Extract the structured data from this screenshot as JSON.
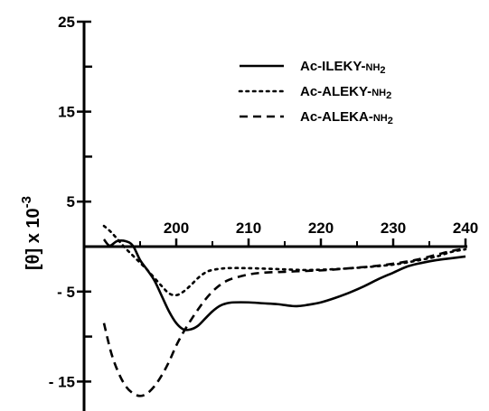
{
  "chart_data": {
    "type": "line",
    "title": "",
    "xlabel": "",
    "ylabel": "[θ] x 10",
    "ylabel_exponent": "-3",
    "xlim": [
      188,
      240
    ],
    "ylim": [
      -17.5,
      25
    ],
    "x_ticks": [
      200,
      210,
      220,
      230,
      240
    ],
    "y_ticks_labeled": [
      {
        "value": 25,
        "label": "25"
      },
      {
        "value": 15,
        "label": "15"
      },
      {
        "value": 5,
        "label": "5"
      },
      {
        "value": -5,
        "label": "- 5"
      },
      {
        "value": -15,
        "label": "- 15"
      }
    ],
    "y_ticks_minor": [
      20,
      10,
      -10
    ],
    "legend_position": "top-right",
    "series": [
      {
        "name": "Ac-ILEKY-NH2",
        "name_main": "Ac-ILEKY-",
        "name_sub": "NH",
        "name_subscript": "2",
        "style": "solid",
        "color": "#000000",
        "points": [
          [
            190,
            0.8
          ],
          [
            190.8,
            0.1
          ],
          [
            191.8,
            0.6
          ],
          [
            193,
            0.6
          ],
          [
            194,
            0.1
          ],
          [
            195,
            -1.5
          ],
          [
            196,
            -2.6
          ],
          [
            197,
            -3.8
          ],
          [
            198,
            -5.5
          ],
          [
            199,
            -7.2
          ],
          [
            200,
            -8.5
          ],
          [
            201,
            -9.2
          ],
          [
            202,
            -9.2
          ],
          [
            203,
            -8.8
          ],
          [
            204,
            -8.0
          ],
          [
            205,
            -7.2
          ],
          [
            206,
            -6.6
          ],
          [
            207,
            -6.3
          ],
          [
            208,
            -6.2
          ],
          [
            210,
            -6.2
          ],
          [
            212,
            -6.3
          ],
          [
            214,
            -6.4
          ],
          [
            216,
            -6.6
          ],
          [
            217,
            -6.6
          ],
          [
            218,
            -6.5
          ],
          [
            220,
            -6.2
          ],
          [
            222,
            -5.7
          ],
          [
            224,
            -5.1
          ],
          [
            226,
            -4.4
          ],
          [
            228,
            -3.6
          ],
          [
            230,
            -2.9
          ],
          [
            232,
            -2.2
          ],
          [
            234,
            -1.8
          ],
          [
            236,
            -1.5
          ],
          [
            238,
            -1.3
          ],
          [
            240,
            -1.1
          ]
        ]
      },
      {
        "name": "Ac-ALEKY-NH2",
        "name_main": "Ac-ALEKY-",
        "name_sub": "NH",
        "name_subscript": "2",
        "style": "dotted",
        "color": "#000000",
        "points": [
          [
            190,
            2.3
          ],
          [
            191,
            1.6
          ],
          [
            192,
            0.7
          ],
          [
            193,
            -0.2
          ],
          [
            194,
            -1.0
          ],
          [
            195,
            -1.8
          ],
          [
            196,
            -2.6
          ],
          [
            197,
            -3.5
          ],
          [
            198,
            -4.4
          ],
          [
            199,
            -5.2
          ],
          [
            200,
            -5.4
          ],
          [
            201,
            -5.0
          ],
          [
            202,
            -4.3
          ],
          [
            203,
            -3.5
          ],
          [
            204,
            -2.9
          ],
          [
            205,
            -2.6
          ],
          [
            207,
            -2.4
          ],
          [
            210,
            -2.4
          ],
          [
            214,
            -2.5
          ],
          [
            218,
            -2.6
          ],
          [
            222,
            -2.5
          ],
          [
            226,
            -2.3
          ],
          [
            230,
            -2.0
          ],
          [
            233,
            -1.6
          ],
          [
            236,
            -1.1
          ],
          [
            238,
            -0.6
          ],
          [
            240,
            -0.3
          ]
        ]
      },
      {
        "name": "Ac-ALEKA-NH2",
        "name_main": "Ac-ALEKA-",
        "name_sub": "NH",
        "name_subscript": "2",
        "style": "dashed",
        "color": "#000000",
        "points": [
          [
            190,
            -8.5
          ],
          [
            191,
            -11.8
          ],
          [
            192,
            -14.0
          ],
          [
            193,
            -15.5
          ],
          [
            194,
            -16.3
          ],
          [
            195,
            -16.6
          ],
          [
            196,
            -16.3
          ],
          [
            197,
            -15.5
          ],
          [
            198,
            -14.3
          ],
          [
            199,
            -12.8
          ],
          [
            200,
            -11.0
          ],
          [
            201,
            -9.5
          ],
          [
            202,
            -8.2
          ],
          [
            203,
            -7.0
          ],
          [
            204,
            -5.9
          ],
          [
            205,
            -5.0
          ],
          [
            206,
            -4.3
          ],
          [
            207,
            -3.8
          ],
          [
            208,
            -3.5
          ],
          [
            210,
            -3.1
          ],
          [
            212,
            -2.9
          ],
          [
            215,
            -2.8
          ],
          [
            218,
            -2.7
          ],
          [
            221,
            -2.6
          ],
          [
            224,
            -2.4
          ],
          [
            227,
            -2.2
          ],
          [
            230,
            -1.9
          ],
          [
            233,
            -1.5
          ],
          [
            236,
            -0.9
          ],
          [
            238,
            -0.5
          ],
          [
            240,
            -0.2
          ]
        ]
      }
    ]
  }
}
